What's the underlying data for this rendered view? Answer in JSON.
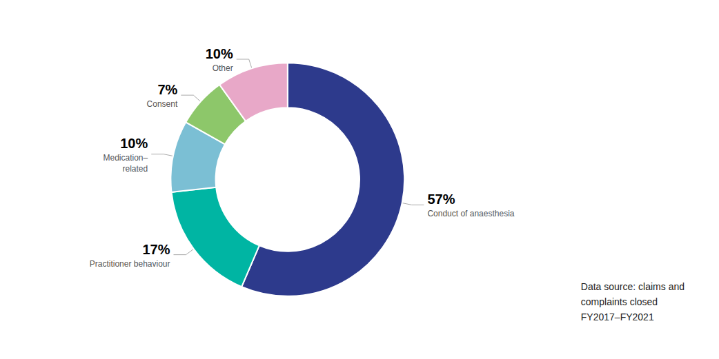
{
  "chart_data": {
    "type": "pie",
    "categories": [
      "Conduct of anaesthesia",
      "Practitioner behaviour",
      "Medication–\nrelated",
      "Consent",
      "Other"
    ],
    "values": [
      57,
      17,
      10,
      7,
      10
    ],
    "value_labels": [
      "57%",
      "17%",
      "10%",
      "7%",
      "10%"
    ],
    "colors": [
      "#2D3A8C",
      "#00B5A3",
      "#7BBFD4",
      "#8DC76A",
      "#E8A8C8"
    ],
    "data_labels": true,
    "annotations": [
      "Data source: claims and\ncomplaints closed\nFY2017–FY2021"
    ]
  }
}
